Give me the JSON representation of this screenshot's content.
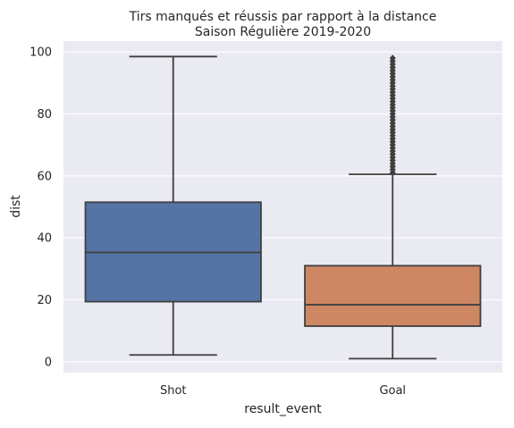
{
  "chart_data": {
    "type": "box",
    "title_line1": "Tirs manqués et réussis par rapport à la distance",
    "title_line2": "Saison Régulière 2019-2020",
    "xlabel": "result_event",
    "ylabel": "dist",
    "ylim": [
      -3.5,
      103.5
    ],
    "y_ticks": [
      0,
      20,
      40,
      60,
      80,
      100
    ],
    "y_tick_labels": [
      "0",
      "20",
      "40",
      "60",
      "80",
      "100"
    ],
    "grid": true,
    "categories": [
      "Shot",
      "Goal"
    ],
    "boxes": [
      {
        "label": "Shot",
        "color": "#5673a5",
        "whisker_low": 2.2,
        "q1": 19.4,
        "median": 35.3,
        "q3": 51.5,
        "whisker_high": 98.5,
        "outliers": []
      },
      {
        "label": "Goal",
        "color": "#cd8763",
        "whisker_low": 1.0,
        "q1": 11.5,
        "median": 18.4,
        "q3": 31.0,
        "whisker_high": 60.5,
        "outliers": [
          61,
          62,
          63,
          64,
          65,
          66,
          67,
          68,
          69,
          70,
          71,
          72,
          73,
          74,
          75,
          76,
          77,
          78,
          79,
          80,
          81,
          82,
          83,
          84,
          85,
          86,
          87,
          88,
          89,
          90,
          91,
          92,
          93,
          94,
          95,
          96,
          97,
          98
        ]
      }
    ]
  }
}
